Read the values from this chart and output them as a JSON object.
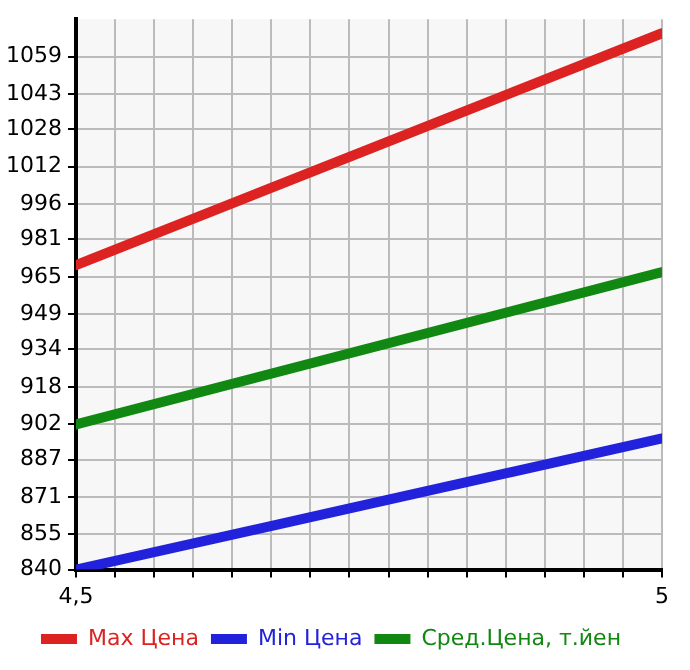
{
  "chart_data": {
    "type": "line",
    "x": [
      4.5,
      5
    ],
    "series": [
      {
        "name": "Max Цена",
        "color": "#dd2222",
        "values": [
          970,
          1069
        ]
      },
      {
        "name": "Min Цена",
        "color": "#2222dd",
        "values": [
          840,
          896
        ]
      },
      {
        "name": "Сред.Цена, т.йен",
        "color": "#118811",
        "values": [
          902,
          967
        ]
      }
    ],
    "xlim": [
      4.5,
      5
    ],
    "xticks": [
      {
        "value": 4.5,
        "label": "4,5"
      },
      {
        "value": 4.5333,
        "label": null
      },
      {
        "value": 4.5667,
        "label": null
      },
      {
        "value": 4.6,
        "label": null
      },
      {
        "value": 4.6333,
        "label": null
      },
      {
        "value": 4.6667,
        "label": null
      },
      {
        "value": 4.7,
        "label": null
      },
      {
        "value": 4.7333,
        "label": null
      },
      {
        "value": 4.7667,
        "label": null
      },
      {
        "value": 4.8,
        "label": null
      },
      {
        "value": 4.8333,
        "label": null
      },
      {
        "value": 4.8667,
        "label": null
      },
      {
        "value": 4.9,
        "label": null
      },
      {
        "value": 4.9333,
        "label": null
      },
      {
        "value": 4.9667,
        "label": null
      },
      {
        "value": 5,
        "label": "5"
      }
    ],
    "ylim": [
      840,
      1075
    ],
    "yticks": [
      840,
      855,
      871,
      887,
      902,
      918,
      934,
      949,
      965,
      981,
      996,
      1012,
      1028,
      1043,
      1059
    ],
    "grid": true,
    "legend": "bottom",
    "marker": "none",
    "line_style": "solid"
  }
}
